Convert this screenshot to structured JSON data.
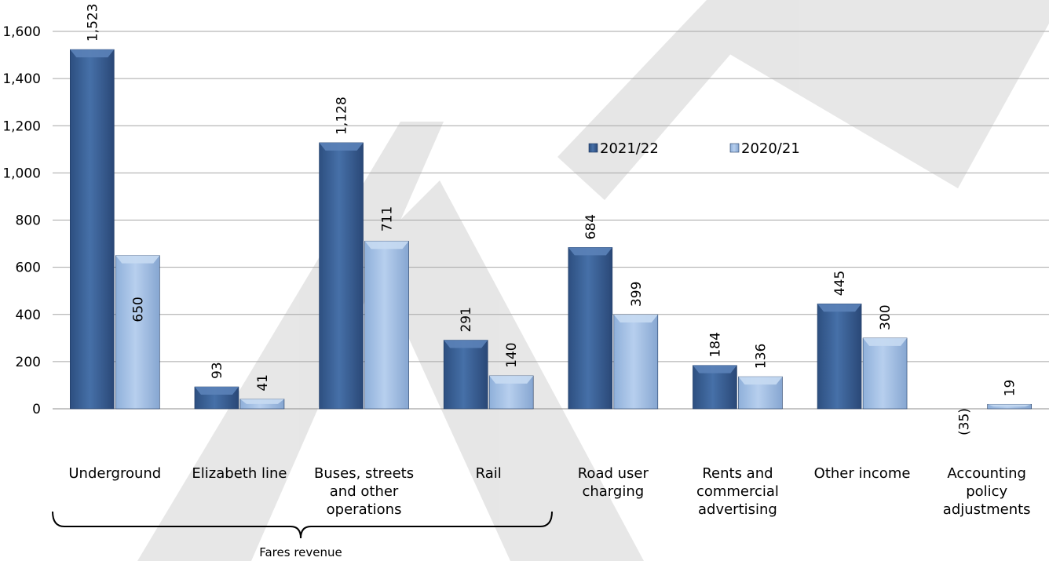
{
  "chart_data": {
    "type": "bar",
    "title": "",
    "xlabel": "",
    "ylabel": "",
    "ylim": [
      0,
      1600
    ],
    "yticks": [
      0,
      200,
      400,
      600,
      800,
      1000,
      1200,
      1400,
      1600
    ],
    "ytick_labels": [
      "0",
      "200",
      "400",
      "600",
      "800",
      "1,000",
      "1,200",
      "1,400",
      "1,600"
    ],
    "grid": true,
    "legend_position": "upper-center",
    "categories": [
      [
        "Underground"
      ],
      [
        "Elizabeth line"
      ],
      [
        "Buses, streets",
        "and other",
        "operations"
      ],
      [
        "Rail"
      ],
      [
        "Road user",
        "charging"
      ],
      [
        "Rents and",
        "commercial",
        "advertising"
      ],
      [
        "Other income"
      ],
      [
        "Accounting",
        "policy",
        "adjustments"
      ]
    ],
    "series": [
      {
        "name": "2021/22",
        "color": "#3a5f94",
        "values": [
          1523,
          93,
          1128,
          291,
          684,
          184,
          445,
          -35
        ],
        "labels": [
          "1,523",
          "93",
          "1,128",
          "291",
          "684",
          "184",
          "445",
          "(35)"
        ]
      },
      {
        "name": "2020/21",
        "color": "#9dbbe0",
        "values": [
          650,
          41,
          711,
          140,
          399,
          136,
          300,
          19
        ],
        "labels": [
          "650",
          "41",
          "711",
          "140",
          "399",
          "136",
          "300",
          "19"
        ]
      }
    ],
    "annotations": [
      {
        "text": "Fares revenue",
        "spans_categories": [
          0,
          3
        ]
      }
    ]
  },
  "watermark": "DRAFT"
}
